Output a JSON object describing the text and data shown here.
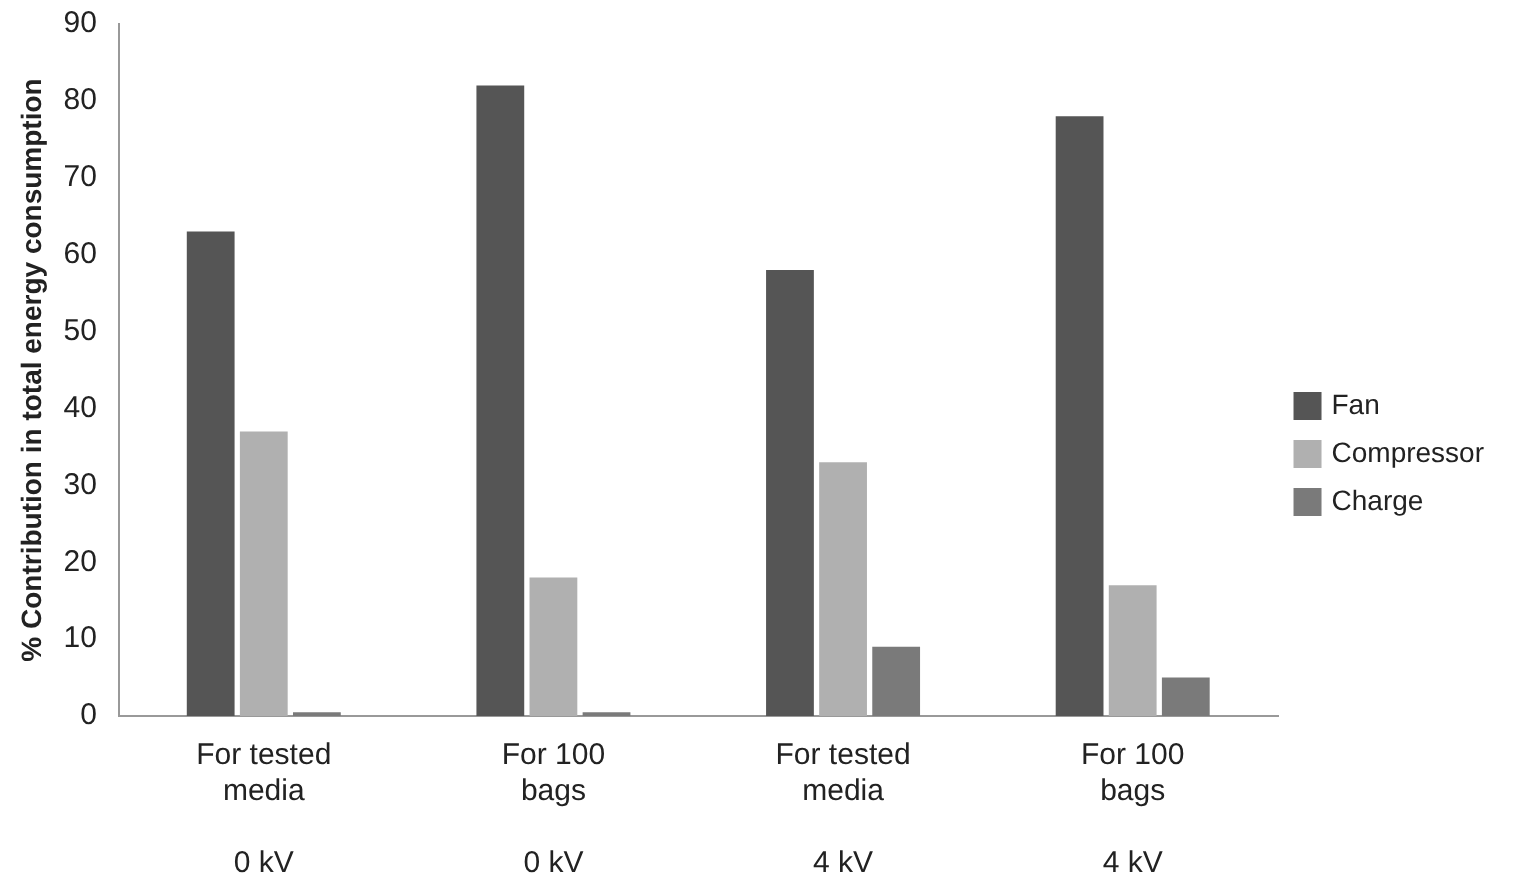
{
  "chart_data": {
    "type": "bar",
    "ylabel": "% Contribution in total energy consumption",
    "categories": [
      "For tested\nmedia\n\n0 kV",
      "For 100\nbags\n\n0 kV",
      "For tested\nmedia\n\n4 kV",
      "For 100\nbags\n\n4 kV"
    ],
    "series": [
      {
        "name": "Fan",
        "color": "#555555",
        "values": [
          63,
          82,
          58,
          78
        ]
      },
      {
        "name": "Compressor",
        "color": "#b0b0b0",
        "values": [
          37,
          18,
          33,
          17
        ]
      },
      {
        "name": "Charge",
        "color": "#7a7a7a",
        "values": [
          0.5,
          0.5,
          9,
          5
        ]
      }
    ],
    "ylim": [
      0,
      90
    ],
    "yticks": [
      0,
      10,
      20,
      30,
      40,
      50,
      60,
      70,
      80,
      90
    ],
    "grid": false,
    "legend": "right"
  }
}
